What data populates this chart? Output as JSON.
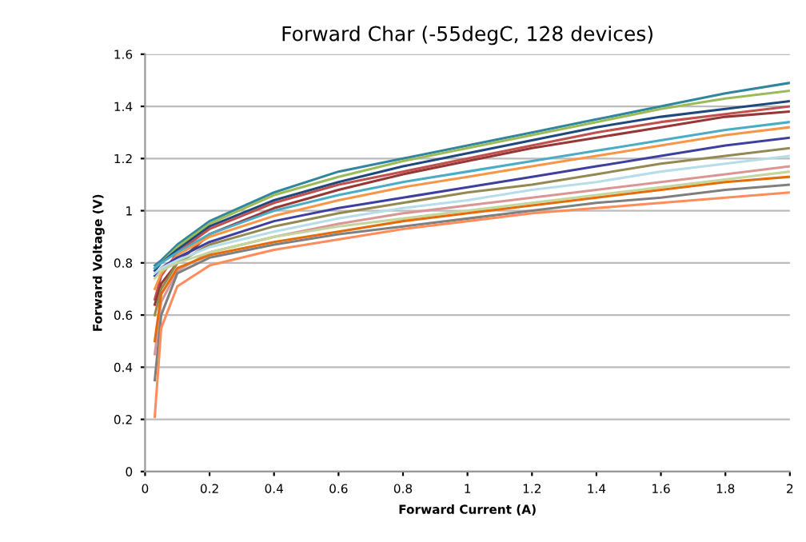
{
  "chart_data": {
    "type": "line",
    "title": "Forward Char (-55degC, 128 devices)",
    "xlabel": "Forward Current (A)",
    "ylabel": "Forward Voltage (V)",
    "x": [
      0.03,
      0.05,
      0.1,
      0.2,
      0.4,
      0.6,
      0.8,
      1.0,
      1.2,
      1.4,
      1.6,
      1.8,
      2.0
    ],
    "xlim": [
      0,
      2
    ],
    "xticks": [
      0,
      0.2,
      0.4,
      0.6,
      0.8,
      1,
      1.2,
      1.4,
      1.6,
      1.8,
      2
    ],
    "ylim": [
      0,
      1.6
    ],
    "yticks": [
      0,
      0.2,
      0.4,
      0.6,
      0.8,
      1,
      1.2,
      1.4,
      1.6
    ],
    "grid": "y",
    "legend": false,
    "marker": "none",
    "line_style": "solid",
    "series": [
      {
        "color": "#31859c",
        "values": [
          0.79,
          0.81,
          0.87,
          0.96,
          1.07,
          1.15,
          1.2,
          1.25,
          1.3,
          1.35,
          1.4,
          1.45,
          1.49
        ]
      },
      {
        "color": "#9bbb59",
        "values": [
          0.78,
          0.8,
          0.86,
          0.95,
          1.06,
          1.13,
          1.19,
          1.24,
          1.29,
          1.34,
          1.39,
          1.43,
          1.46
        ]
      },
      {
        "color": "#1f497d",
        "values": [
          0.77,
          0.8,
          0.85,
          0.94,
          1.04,
          1.11,
          1.17,
          1.22,
          1.27,
          1.32,
          1.36,
          1.39,
          1.42
        ]
      },
      {
        "color": "#c0504d",
        "values": [
          0.66,
          0.75,
          0.84,
          0.93,
          1.03,
          1.1,
          1.15,
          1.2,
          1.25,
          1.3,
          1.34,
          1.37,
          1.4
        ]
      },
      {
        "color": "#953735",
        "values": [
          0.64,
          0.72,
          0.8,
          0.91,
          1.01,
          1.08,
          1.14,
          1.19,
          1.24,
          1.28,
          1.32,
          1.36,
          1.38
        ]
      },
      {
        "color": "#4bacc6",
        "values": [
          0.78,
          0.8,
          0.84,
          0.91,
          1.0,
          1.06,
          1.11,
          1.15,
          1.19,
          1.23,
          1.27,
          1.31,
          1.34
        ]
      },
      {
        "color": "#f79646",
        "values": [
          0.7,
          0.76,
          0.83,
          0.9,
          0.98,
          1.04,
          1.09,
          1.13,
          1.17,
          1.21,
          1.25,
          1.29,
          1.32
        ]
      },
      {
        "color": "#3f3f9f",
        "values": [
          0.75,
          0.78,
          0.82,
          0.88,
          0.96,
          1.01,
          1.05,
          1.09,
          1.13,
          1.17,
          1.21,
          1.25,
          1.28
        ]
      },
      {
        "color": "#938953",
        "values": [
          0.6,
          0.7,
          0.8,
          0.87,
          0.94,
          0.99,
          1.03,
          1.07,
          1.1,
          1.14,
          1.18,
          1.21,
          1.24
        ]
      },
      {
        "color": "#b7dee8",
        "values": [
          0.76,
          0.78,
          0.81,
          0.86,
          0.92,
          0.97,
          1.01,
          1.04,
          1.08,
          1.11,
          1.15,
          1.18,
          1.21
        ]
      },
      {
        "color": "#d99694",
        "values": [
          0.45,
          0.65,
          0.77,
          0.84,
          0.9,
          0.95,
          0.99,
          1.02,
          1.05,
          1.08,
          1.11,
          1.14,
          1.17
        ]
      },
      {
        "color": "#c3d69b",
        "values": [
          0.74,
          0.77,
          0.8,
          0.84,
          0.9,
          0.94,
          0.97,
          1.0,
          1.03,
          1.06,
          1.09,
          1.12,
          1.15
        ]
      },
      {
        "color": "#e46c0a",
        "values": [
          0.5,
          0.68,
          0.78,
          0.83,
          0.88,
          0.92,
          0.96,
          0.99,
          1.02,
          1.05,
          1.08,
          1.11,
          1.13
        ]
      },
      {
        "color": "#7f7f7f",
        "values": [
          0.35,
          0.6,
          0.76,
          0.82,
          0.87,
          0.91,
          0.94,
          0.97,
          1.0,
          1.03,
          1.05,
          1.08,
          1.1
        ]
      },
      {
        "color": "#ff8c5a",
        "values": [
          0.21,
          0.55,
          0.71,
          0.79,
          0.85,
          0.89,
          0.93,
          0.96,
          0.99,
          1.01,
          1.03,
          1.05,
          1.07
        ]
      }
    ]
  }
}
